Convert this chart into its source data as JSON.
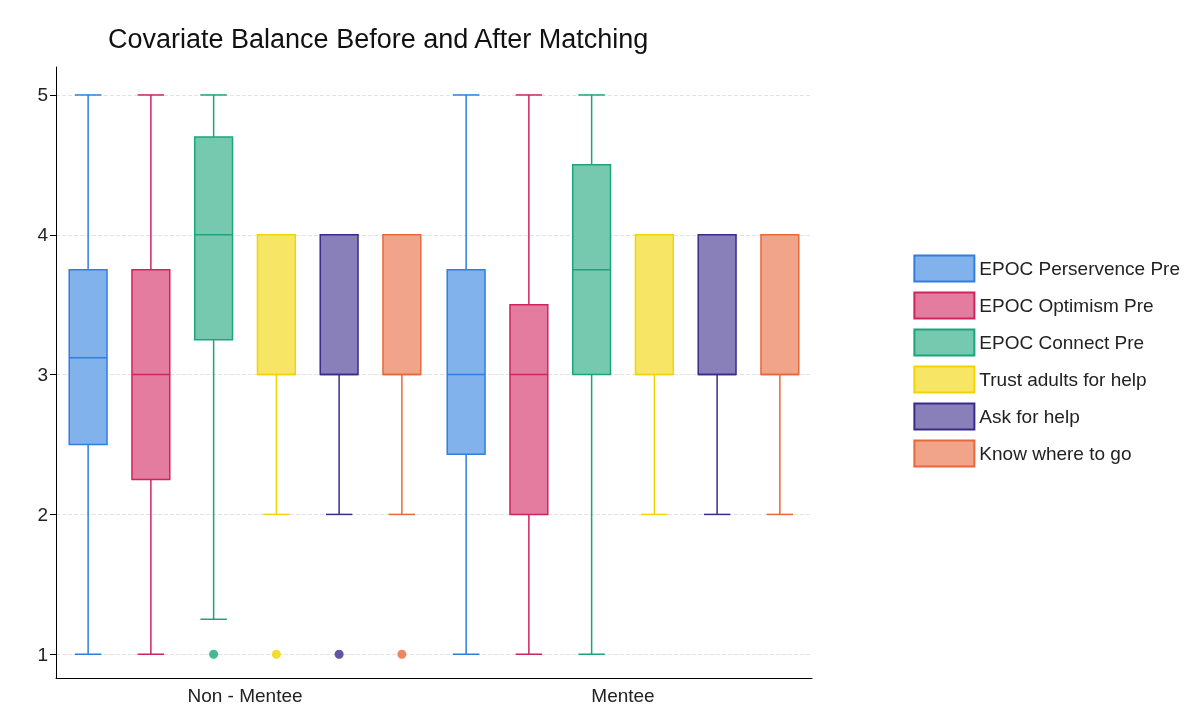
{
  "chart_data": {
    "type": "box",
    "title": "Covariate Balance Before and After Matching",
    "categories": [
      "Non - Mentee",
      "Mentee"
    ],
    "ylim": [
      0.83,
      5.2
    ],
    "yticks": [
      1,
      2,
      3,
      4,
      5
    ],
    "grid": "y",
    "legend": "right",
    "series": [
      {
        "name": "EPOC Perservence Pre",
        "color": "#2e7fe0",
        "boxes": [
          {
            "low": 1,
            "q1": 2.5,
            "median": 3.12,
            "q3": 3.75,
            "high": 5
          },
          {
            "low": 1,
            "q1": 2.43,
            "median": 3,
            "q3": 3.75,
            "high": 5
          }
        ]
      },
      {
        "name": "EPOC Optimism Pre",
        "color": "#d0245e",
        "boxes": [
          {
            "low": 1,
            "q1": 2.25,
            "median": 3,
            "q3": 3.75,
            "high": 5
          },
          {
            "low": 1,
            "q1": 2,
            "median": 3,
            "q3": 3.5,
            "high": 5
          }
        ]
      },
      {
        "name": "EPOC Connect Pre",
        "color": "#1aa57a",
        "boxes": [
          {
            "low": 1.25,
            "q1": 3.25,
            "median": 4,
            "q3": 4.7,
            "high": 5,
            "outliers": [
              1
            ]
          },
          {
            "low": 1,
            "q1": 3,
            "median": 3.75,
            "q3": 4.5,
            "high": 5
          }
        ]
      },
      {
        "name": "Trust adults for help",
        "color": "#f2d500",
        "boxes": [
          {
            "low": 2,
            "q1": 3,
            "median": 3,
            "q3": 4,
            "high": 4,
            "outliers": [
              1
            ]
          },
          {
            "low": 2,
            "q1": 3,
            "median": 3,
            "q3": 4,
            "high": 4
          }
        ]
      },
      {
        "name": "Ask for help",
        "color": "#3b2a8a",
        "boxes": [
          {
            "low": 2,
            "q1": 3,
            "median": 3,
            "q3": 4,
            "high": 4,
            "outliers": [
              1
            ]
          },
          {
            "low": 2,
            "q1": 3,
            "median": 3,
            "q3": 4,
            "high": 4
          }
        ]
      },
      {
        "name": "Know where to go",
        "color": "#e8683a",
        "boxes": [
          {
            "low": 2,
            "q1": 3,
            "median": 3,
            "q3": 4,
            "high": 4,
            "outliers": [
              1
            ]
          },
          {
            "low": 2,
            "q1": 3,
            "median": 3,
            "q3": 4,
            "high": 4
          }
        ]
      }
    ]
  }
}
